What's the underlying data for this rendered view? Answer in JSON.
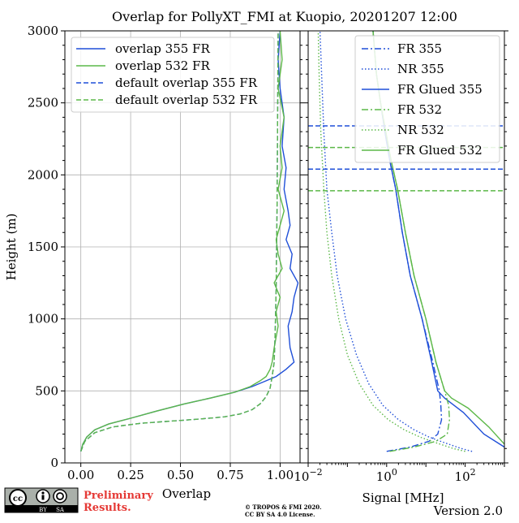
{
  "title": "Overlap for PollyXT_FMI at Kuopio, 20201207 12:00",
  "footer": {
    "preliminary_line1": "Preliminary",
    "preliminary_line2": "Results.",
    "copyright_line1": "© TROPOS & FMI 2020.",
    "copyright_line2": "CC BY SA 4.0 License.",
    "version": "Version 2.0",
    "license_badge": {
      "label_by": "BY",
      "label_sa": "SA",
      "icon": "cc-by-sa-icon"
    }
  },
  "colors": {
    "blue": "#1f4fd8",
    "green": "#5cb848",
    "grid": "#b0b0b0"
  },
  "chart_data": [
    {
      "type": "line",
      "xlabel": "Overlap",
      "ylabel": "Height (m)",
      "xlim": [
        -0.08,
        1.1
      ],
      "ylim": [
        0,
        3000
      ],
      "xticks": [
        0.0,
        0.25,
        0.5,
        0.75,
        1.0
      ],
      "xtick_labels": [
        "0.00",
        "0.25",
        "0.50",
        "0.75",
        "1.00"
      ],
      "yticks": [
        0,
        500,
        1000,
        1500,
        2000,
        2500,
        3000
      ],
      "ytick_labels": [
        "0",
        "500",
        "1000",
        "1500",
        "2000",
        "2500",
        "3000"
      ],
      "grid": true,
      "legend_position": "top-left",
      "series": [
        {
          "name": "overlap 355 FR",
          "color": "#1f4fd8",
          "style": "solid",
          "x": [
            0.0,
            0.01,
            0.03,
            0.07,
            0.14,
            0.25,
            0.38,
            0.52,
            0.65,
            0.77,
            0.86,
            0.93,
            0.98,
            1.03,
            1.07,
            1.05,
            1.04,
            1.06,
            1.07,
            1.09,
            1.05,
            1.06,
            1.03,
            1.05,
            1.04,
            1.02,
            1.03,
            1.01,
            1.02,
            1.0,
            0.99,
            1.0
          ],
          "y": [
            80,
            130,
            180,
            230,
            270,
            310,
            360,
            410,
            450,
            490,
            530,
            570,
            600,
            650,
            700,
            800,
            950,
            1050,
            1150,
            1250,
            1350,
            1450,
            1550,
            1650,
            1750,
            1900,
            2050,
            2200,
            2400,
            2600,
            2800,
            3000
          ]
        },
        {
          "name": "overlap 532 FR",
          "color": "#5cb848",
          "style": "solid",
          "x": [
            0.0,
            0.01,
            0.03,
            0.07,
            0.14,
            0.25,
            0.38,
            0.52,
            0.65,
            0.77,
            0.85,
            0.9,
            0.93,
            0.95,
            0.96,
            0.97,
            0.99,
            0.98,
            1.0,
            0.97,
            1.01,
            0.99,
            0.98,
            1.0,
            1.02,
            0.99,
            1.01,
            1.0,
            1.02,
            0.99,
            1.01,
            1.0
          ],
          "y": [
            80,
            130,
            180,
            230,
            270,
            310,
            360,
            410,
            450,
            490,
            530,
            570,
            600,
            650,
            700,
            800,
            950,
            1050,
            1150,
            1250,
            1350,
            1450,
            1550,
            1650,
            1750,
            1900,
            2050,
            2200,
            2400,
            2600,
            2800,
            3000
          ]
        },
        {
          "name": "default overlap 355 FR",
          "color": "#1f4fd8",
          "style": "dashed",
          "x": [
            0.0,
            0.02,
            0.07,
            0.16,
            0.3,
            0.45,
            0.6,
            0.72,
            0.8,
            0.86,
            0.9,
            0.93,
            0.95,
            0.96,
            0.97,
            0.975,
            0.98,
            0.985,
            0.99
          ],
          "y": [
            80,
            150,
            210,
            250,
            275,
            290,
            305,
            320,
            340,
            370,
            410,
            460,
            520,
            600,
            700,
            900,
            1200,
            1800,
            3000
          ]
        },
        {
          "name": "default overlap 532 FR",
          "color": "#5cb848",
          "style": "dashed",
          "x": [
            0.0,
            0.02,
            0.07,
            0.16,
            0.3,
            0.45,
            0.6,
            0.72,
            0.8,
            0.86,
            0.9,
            0.93,
            0.95,
            0.96,
            0.97,
            0.975,
            0.98,
            0.985,
            0.99
          ],
          "y": [
            80,
            150,
            210,
            250,
            275,
            290,
            305,
            320,
            340,
            370,
            410,
            460,
            520,
            600,
            700,
            900,
            1200,
            1800,
            3000
          ]
        }
      ]
    },
    {
      "type": "line",
      "xlabel": "Signal [MHz]",
      "xscale": "log",
      "xlim": [
        0.01,
        1000
      ],
      "ylim": [
        0,
        3000
      ],
      "xticks": [
        0.01,
        1,
        100
      ],
      "xtick_labels": [
        "10",
        "10",
        "10"
      ],
      "xtick_exponents": [
        "−2",
        "0",
        "2"
      ],
      "grid": false,
      "legend_position": "top-right",
      "hlines": [
        {
          "y": 2340,
          "color": "#1f4fd8",
          "style": "dashed"
        },
        {
          "y": 2040,
          "color": "#1f4fd8",
          "style": "dashed"
        },
        {
          "y": 2190,
          "color": "#5cb848",
          "style": "dashed"
        },
        {
          "y": 1890,
          "color": "#5cb848",
          "style": "dashed"
        }
      ],
      "series": [
        {
          "name": "FR 355",
          "color": "#1f4fd8",
          "style": "dashdot",
          "x": [
            1.0,
            4.0,
            12.0,
            20.0,
            25.0,
            24.0,
            22.0,
            15.0,
            8.0,
            4.0,
            2.5,
            1.7,
            1.2,
            0.9,
            0.7,
            0.55,
            0.45
          ],
          "y": [
            80,
            110,
            150,
            200,
            300,
            400,
            500,
            700,
            1000,
            1300,
            1600,
            1900,
            2100,
            2300,
            2500,
            2700,
            3000
          ]
        },
        {
          "name": "NR 355",
          "color": "#1f4fd8",
          "style": "dotted",
          "x": [
            150.0,
            80.0,
            30.0,
            12.0,
            5.0,
            2.0,
            0.8,
            0.35,
            0.17,
            0.09,
            0.055,
            0.04,
            0.03,
            0.025,
            0.022,
            0.02
          ],
          "y": [
            80,
            100,
            140,
            180,
            230,
            300,
            400,
            550,
            750,
            1000,
            1300,
            1600,
            1900,
            2300,
            2700,
            3000
          ]
        },
        {
          "name": "FR Glued 355",
          "color": "#1f4fd8",
          "style": "solid",
          "x": [
            1000.0,
            300.0,
            90.0,
            30.0,
            20.0,
            14.0,
            8.0,
            4.0,
            2.5,
            1.7,
            1.2,
            0.9,
            0.7,
            0.55,
            0.45
          ],
          "y": [
            110,
            200,
            350,
            450,
            500,
            700,
            1000,
            1300,
            1600,
            1900,
            2100,
            2300,
            2500,
            2700,
            3000
          ]
        },
        {
          "name": "FR 532",
          "color": "#5cb848",
          "style": "dashdot",
          "x": [
            1.2,
            5.0,
            18.0,
            35.0,
            40.0,
            38.0,
            30.0,
            18.0,
            10.0,
            5.0,
            3.0,
            1.9,
            1.3,
            0.95,
            0.7,
            0.55,
            0.45
          ],
          "y": [
            80,
            110,
            150,
            200,
            300,
            400,
            500,
            700,
            1000,
            1300,
            1600,
            1900,
            2100,
            2300,
            2500,
            2700,
            3000
          ]
        },
        {
          "name": "NR 532",
          "color": "#5cb848",
          "style": "dotted",
          "x": [
            100.0,
            50.0,
            18.0,
            7.0,
            2.8,
            1.1,
            0.45,
            0.2,
            0.1,
            0.06,
            0.04,
            0.03,
            0.025,
            0.021,
            0.019,
            0.018
          ],
          "y": [
            80,
            100,
            140,
            180,
            230,
            300,
            400,
            550,
            750,
            1000,
            1300,
            1600,
            1900,
            2300,
            2700,
            3000
          ]
        },
        {
          "name": "FR Glued 532",
          "color": "#5cb848",
          "style": "solid",
          "x": [
            1000.0,
            400.0,
            120.0,
            45.0,
            30.0,
            18.0,
            10.0,
            5.0,
            3.0,
            1.9,
            1.3,
            0.95,
            0.7,
            0.55,
            0.45
          ],
          "y": [
            130,
            250,
            380,
            450,
            500,
            700,
            1000,
            1300,
            1600,
            1900,
            2100,
            2300,
            2500,
            2700,
            3000
          ]
        }
      ]
    }
  ]
}
